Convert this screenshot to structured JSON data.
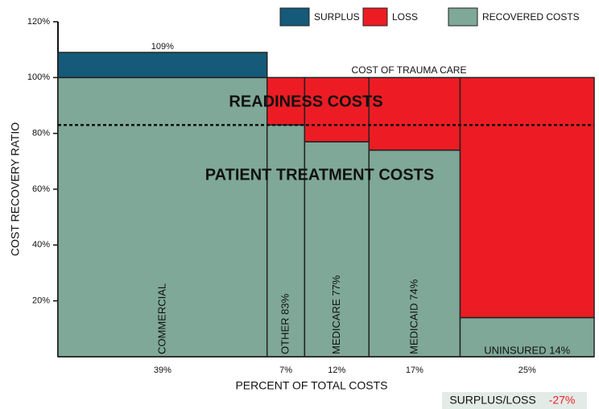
{
  "chart_data": {
    "type": "mekko",
    "categories": [
      "COMMERCIAL",
      "OTHER  83%",
      "MEDICARE 77%",
      "MEDICAID 74%",
      "UNINSURED 14%"
    ],
    "widths": [
      39,
      7,
      12,
      17,
      25
    ],
    "width_labels": [
      "39%",
      "7%",
      "12%",
      "17%",
      "25%"
    ],
    "series": [
      {
        "name": "RECOVERED COSTS",
        "color": "#7fa898",
        "values": [
          100,
          83,
          77,
          74,
          14
        ]
      },
      {
        "name": "SURPLUS",
        "color": "#155a78",
        "values": [
          9,
          0,
          0,
          0,
          0
        ]
      },
      {
        "name": "LOSS",
        "color": "#ed1c24",
        "values": [
          0,
          17,
          23,
          26,
          86
        ]
      }
    ],
    "total_label": "109%",
    "reference_line": 83,
    "annotations": [
      "COST OF TRAUMA CARE",
      "READINESS COSTS",
      "PATIENT TREATMENT COSTS"
    ],
    "x_label": "PERCENT OF TOTAL COSTS",
    "y_label": "COST RECOVERY RATIO",
    "xlim": [
      0,
      100
    ],
    "ylim": [
      0,
      120
    ],
    "yticks": [
      {
        "value": 20,
        "label": "20%"
      },
      {
        "value": 40,
        "label": "40%"
      },
      {
        "value": 60,
        "label": "60%"
      },
      {
        "value": 80,
        "label": "80%"
      },
      {
        "value": 100,
        "label": "100%"
      },
      {
        "value": 120,
        "label": "120%"
      }
    ],
    "summary": {
      "label": "SURPLUS/LOSS",
      "value_label": "-27%"
    }
  }
}
